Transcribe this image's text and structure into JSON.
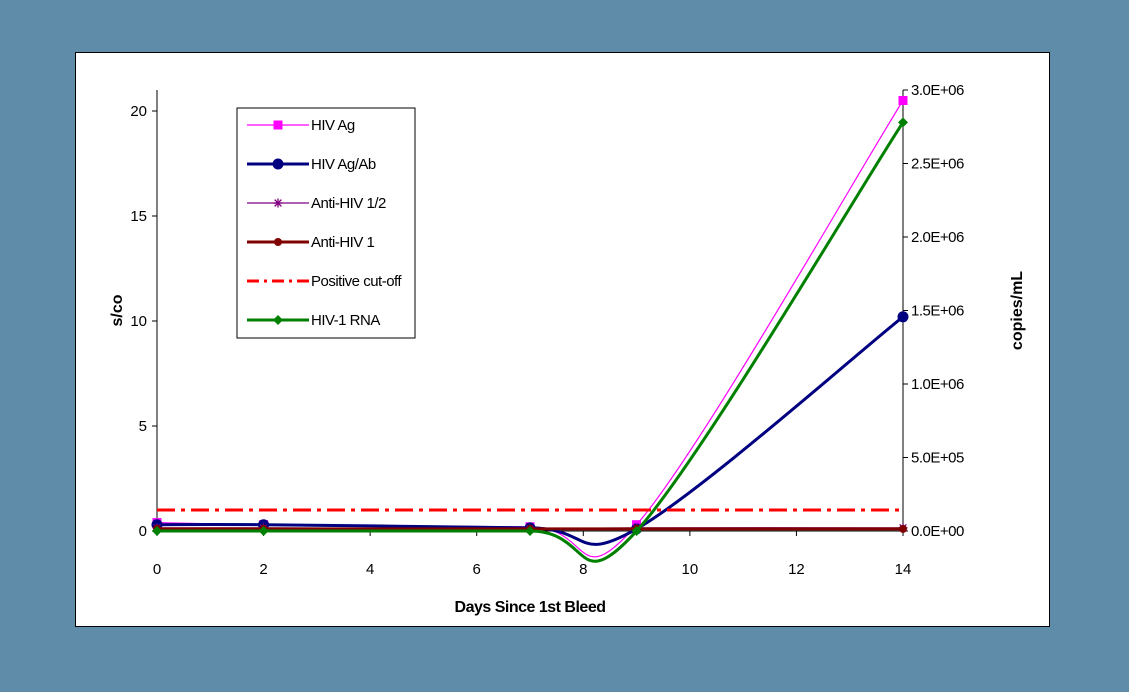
{
  "chart_data": {
    "type": "line",
    "xlabel": "Days Since 1st Bleed",
    "ylabel": "s/co",
    "y2label": "copies/mL",
    "xlim": [
      0,
      14
    ],
    "ylim": [
      0,
      21
    ],
    "y2lim": [
      0,
      3000000
    ],
    "x_ticks": [
      "0",
      "2",
      "4",
      "6",
      "8",
      "10",
      "12",
      "14"
    ],
    "y_ticks": [
      "0",
      "5",
      "10",
      "15",
      "20"
    ],
    "y2_ticks": [
      "0.0E+00",
      "5.0E+05",
      "1.0E+06",
      "1.5E+06",
      "2.0E+06",
      "2.5E+06",
      "3.0E+06"
    ],
    "legend_position": "top-left",
    "grid": false,
    "series": [
      {
        "name": "HIV Ag",
        "axis": "left",
        "color": "#ff00ff",
        "marker": "square",
        "width": 1.2,
        "x": [
          0,
          2,
          7,
          9,
          14
        ],
        "values": [
          0.4,
          0.3,
          0.2,
          0.3,
          20.5
        ]
      },
      {
        "name": "HIV Ag/Ab",
        "axis": "left",
        "color": "#000080",
        "marker": "circle",
        "width": 3,
        "x": [
          0,
          2,
          7,
          9,
          14
        ],
        "values": [
          0.3,
          0.3,
          0.15,
          0.1,
          10.2
        ]
      },
      {
        "name": "Anti-HIV 1/2",
        "axis": "left",
        "color": "#800080",
        "marker": "star",
        "width": 1.2,
        "x": [
          0,
          2,
          7,
          9,
          14
        ],
        "values": [
          0.15,
          0.15,
          0.1,
          0.15,
          0.15
        ]
      },
      {
        "name": "Anti-HIV 1",
        "axis": "left",
        "color": "#800000",
        "marker": "circle-small",
        "width": 3,
        "x": [
          0,
          2,
          7,
          9,
          14
        ],
        "values": [
          0.1,
          0.1,
          0.1,
          0.1,
          0.1
        ]
      },
      {
        "name": "Positive cut-off",
        "axis": "left",
        "color": "#ff0000",
        "marker": "none",
        "width": 3,
        "dash": true,
        "x": [
          0,
          14
        ],
        "values": [
          1,
          1
        ]
      },
      {
        "name": "HIV-1 RNA",
        "axis": "right",
        "color": "#008000",
        "marker": "diamond",
        "width": 3,
        "x": [
          0,
          2,
          7,
          9,
          14
        ],
        "values": [
          0,
          0,
          0,
          0,
          2780000
        ]
      }
    ]
  }
}
